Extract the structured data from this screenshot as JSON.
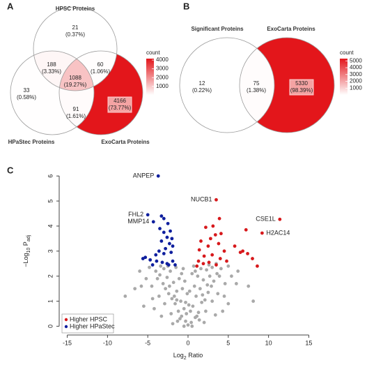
{
  "chart_data": [
    {
      "type": "venn",
      "panel": "A",
      "sets": [
        "HPSC Proteins",
        "HPaStec Proteins",
        "ExoCarta Proteins"
      ],
      "regions": [
        {
          "count": 21,
          "label": "(0.37%)"
        },
        {
          "count": 188,
          "label": "(3.33%)"
        },
        {
          "count": 60,
          "label": "(1.06%)"
        },
        {
          "count": 1088,
          "label": "(19.27%)"
        },
        {
          "count": 33,
          "label": "(0.58%)"
        },
        {
          "count": 4166,
          "label": "(73.77%)"
        },
        {
          "count": 91,
          "label": "(1.61%)"
        }
      ],
      "colorbar_title": "count",
      "colors": [
        "#ffffff",
        "#e3161b"
      ],
      "colorlim": [
        21,
        4166
      ],
      "colorticks": [
        1000,
        2000,
        3000,
        4000
      ]
    },
    {
      "type": "venn",
      "panel": "B",
      "sets": [
        "Significant Proteins",
        "ExoCarta Proteins"
      ],
      "regions": [
        {
          "count": 12,
          "label": "(0.22%)"
        },
        {
          "count": 75,
          "label": "(1.38%)"
        },
        {
          "count": 5330,
          "label": "(98.39%)"
        }
      ],
      "colorbar_title": "count",
      "colors": [
        "#ffffff",
        "#e3161b"
      ],
      "colorlim": [
        12,
        5330
      ],
      "colorticks": [
        1000,
        2000,
        3000,
        4000,
        5000
      ]
    },
    {
      "type": "scatter",
      "panel": "C",
      "xlabel": [
        "Log",
        "2",
        " Ratio"
      ],
      "ylabel": [
        "−Log",
        "10",
        " P",
        "adj"
      ],
      "xlim": [
        -16,
        16
      ],
      "ylim": [
        -0.35,
        6.2
      ],
      "xticks": [
        -15,
        -10,
        -5,
        0,
        5,
        10,
        15
      ],
      "yticks": [
        0,
        1,
        2,
        3,
        4,
        5,
        6
      ],
      "legend": "bottom-left",
      "series": [
        {
          "name": "Higher HPSC",
          "color": "#d7191c",
          "x": [
            3.5,
            11.4,
            9.2,
            3.9,
            3.1,
            2.2,
            4.1,
            3.4,
            7.2,
            2.8,
            1.6,
            3.8,
            2.5,
            1.4,
            4.5,
            6.5,
            5.8,
            7.4,
            8.0,
            3.0,
            2.0,
            1.3,
            4.0,
            2.6,
            1.9,
            3.5,
            4.8,
            8.6,
            1.1,
            6.8
          ],
          "y": [
            5.05,
            4.27,
            3.72,
            4.3,
            4.0,
            3.95,
            3.7,
            3.65,
            3.85,
            3.5,
            3.4,
            3.3,
            3.2,
            3.05,
            3.0,
            2.95,
            3.2,
            2.9,
            2.7,
            2.85,
            2.8,
            2.6,
            2.7,
            2.55,
            2.5,
            2.45,
            2.6,
            2.4,
            2.4,
            3.0
          ],
          "point_labels": [
            "NUCB1",
            "CSE1L",
            "H2AC14",
            null,
            null,
            null,
            null,
            null,
            null,
            null,
            null,
            null,
            null,
            null,
            null,
            null,
            null,
            null,
            null,
            null,
            null,
            null,
            null,
            null,
            null,
            null,
            null,
            null,
            null,
            null
          ]
        },
        {
          "name": "Higher HPaStec",
          "color": "#0f1f9e",
          "x": [
            -3.7,
            -5.0,
            -4.3,
            -3.3,
            -3.0,
            -2.5,
            -3.5,
            -3.0,
            -2.2,
            -2.6,
            -3.3,
            -2.3,
            -1.9,
            -2.8,
            -3.6,
            -2.1,
            -4.0,
            -5.3,
            -4.7,
            -3.9,
            -3.2,
            -2.6,
            -1.9,
            -4.4,
            -5.6,
            -1.6,
            -2.4,
            -3.0,
            -2.0
          ],
          "y": [
            6.0,
            4.45,
            4.17,
            4.4,
            4.3,
            4.1,
            3.9,
            3.75,
            3.8,
            3.55,
            3.4,
            3.3,
            3.2,
            3.1,
            3.0,
            2.95,
            2.85,
            2.75,
            2.65,
            2.6,
            2.55,
            2.5,
            2.6,
            2.45,
            2.7,
            2.45,
            2.45,
            2.9,
            3.5
          ],
          "point_labels": [
            "ANPEP",
            "FHL2",
            "MMP14",
            null,
            null,
            null,
            null,
            null,
            null,
            null,
            null,
            null,
            null,
            null,
            null,
            null,
            null,
            null,
            null,
            null,
            null,
            null,
            null,
            null,
            null,
            null,
            null,
            null,
            null
          ]
        },
        {
          "color": "#a9a9a9",
          "x": [
            0.0,
            -0.3,
            0.4,
            -0.8,
            0.9,
            -1.2,
            1.3,
            -0.5,
            0.6,
            -1.6,
            1.7,
            -2.0,
            2.1,
            -0.9,
            1.0,
            -2.4,
            2.5,
            -1.4,
            1.5,
            -2.8,
            2.9,
            -0.2,
            0.3,
            -3.1,
            3.2,
            -1.8,
            1.9,
            -2.6,
            2.7,
            -3.5,
            3.6,
            -1.1,
            1.2,
            -2.2,
            2.3,
            -4.0,
            4.1,
            -1.5,
            1.6,
            -3.0,
            3.0,
            -0.7,
            0.8,
            -1.3,
            1.4,
            -2.1,
            2.2,
            -2.9,
            3.0,
            -3.6,
            3.7,
            -4.5,
            4.6,
            -5.2,
            5.4,
            -6.0,
            6.2,
            -6.6,
            7.5,
            -7.8,
            8.1,
            -5.5,
            5.0,
            -4.2,
            4.3,
            -0.1,
            0.2,
            -0.4,
            0.5,
            -0.6,
            0.7,
            -1.9,
            2.0,
            -3.3,
            3.4,
            -2.5,
            2.6,
            -3.8,
            3.9,
            -4.8,
            5.0,
            -0.3,
            0.1,
            -1.0,
            1.1,
            -1.7,
            1.8,
            -2.3,
            2.4,
            -3.4,
            3.5,
            -0.8,
            0.9,
            -4.4,
            4.5,
            -5.8,
            6.0,
            -0.5,
            0.5,
            -1.4
          ],
          "y": [
            0.05,
            0.2,
            0.15,
            0.4,
            0.35,
            0.6,
            0.55,
            0.7,
            0.8,
            0.9,
            0.95,
            1.1,
            1.05,
            1.0,
            1.2,
            1.3,
            1.35,
            1.4,
            1.5,
            1.5,
            1.6,
            0.5,
            0.6,
            1.7,
            1.8,
            1.75,
            1.85,
            1.95,
            2.0,
            2.05,
            2.1,
            1.9,
            2.0,
            2.2,
            2.25,
            2.2,
            2.3,
            2.35,
            2.3,
            2.3,
            2.35,
            1.5,
            1.6,
            0.2,
            0.25,
            0.5,
            0.6,
            0.9,
            1.0,
            1.2,
            1.3,
            1.6,
            1.7,
            1.9,
            2.0,
            2.2,
            2.2,
            1.5,
            1.6,
            1.2,
            1.0,
            0.8,
            0.9,
            0.7,
            0.6,
            1.3,
            1.4,
            1.8,
            2.1,
            2.3,
            2.4,
            0.1,
            0.15,
            0.4,
            0.45,
            2.4,
            2.45,
            1.9,
            2.0,
            2.35,
            2.4,
            0.95,
            0.85,
            0.3,
            0.4,
            1.2,
            1.25,
            1.6,
            1.65,
            2.4,
            2.5,
            2.1,
            2.2,
            1.1,
            1.2,
            1.6,
            1.7,
            0.0,
            0.0,
            1.05
          ]
        }
      ]
    }
  ]
}
